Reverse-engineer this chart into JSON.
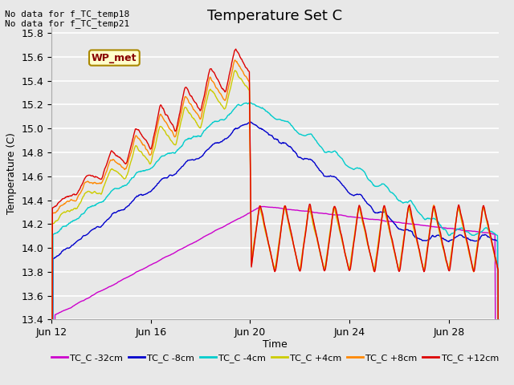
{
  "title": "Temperature Set C",
  "xlabel": "Time",
  "ylabel": "Temperature (C)",
  "ylim": [
    13.4,
    15.85
  ],
  "yticks": [
    13.4,
    13.6,
    13.8,
    14.0,
    14.2,
    14.4,
    14.6,
    14.8,
    15.0,
    15.2,
    15.4,
    15.6,
    15.8
  ],
  "xlim_days": [
    0,
    18
  ],
  "xtick_labels": [
    "Jun 12",
    "Jun 16",
    "Jun 20",
    "Jun 24",
    "Jun 28"
  ],
  "xtick_positions": [
    0,
    4,
    8,
    12,
    16
  ],
  "annotation_text": "No data for f_TC_temp18\nNo data for f_TC_temp21",
  "wp_label": "WP_met",
  "col_32": "#cc00cc",
  "col_8": "#0000cc",
  "col_4": "#00cccc",
  "col_p4": "#cccc00",
  "col_p8": "#ff8800",
  "col_p12": "#dd0000",
  "legend_colors": [
    "#cc00cc",
    "#0000cc",
    "#00cccc",
    "#cccc00",
    "#ff8800",
    "#dd0000"
  ],
  "legend_labels": [
    "TC_C -32cm",
    "TC_C -8cm",
    "TC_C -4cm",
    "TC_C +4cm",
    "TC_C +8cm",
    "TC_C +12cm"
  ],
  "bg_color": "#e8e8e8",
  "grid_color": "#ffffff",
  "title_fontsize": 13,
  "axis_fontsize": 9,
  "tick_fontsize": 9
}
